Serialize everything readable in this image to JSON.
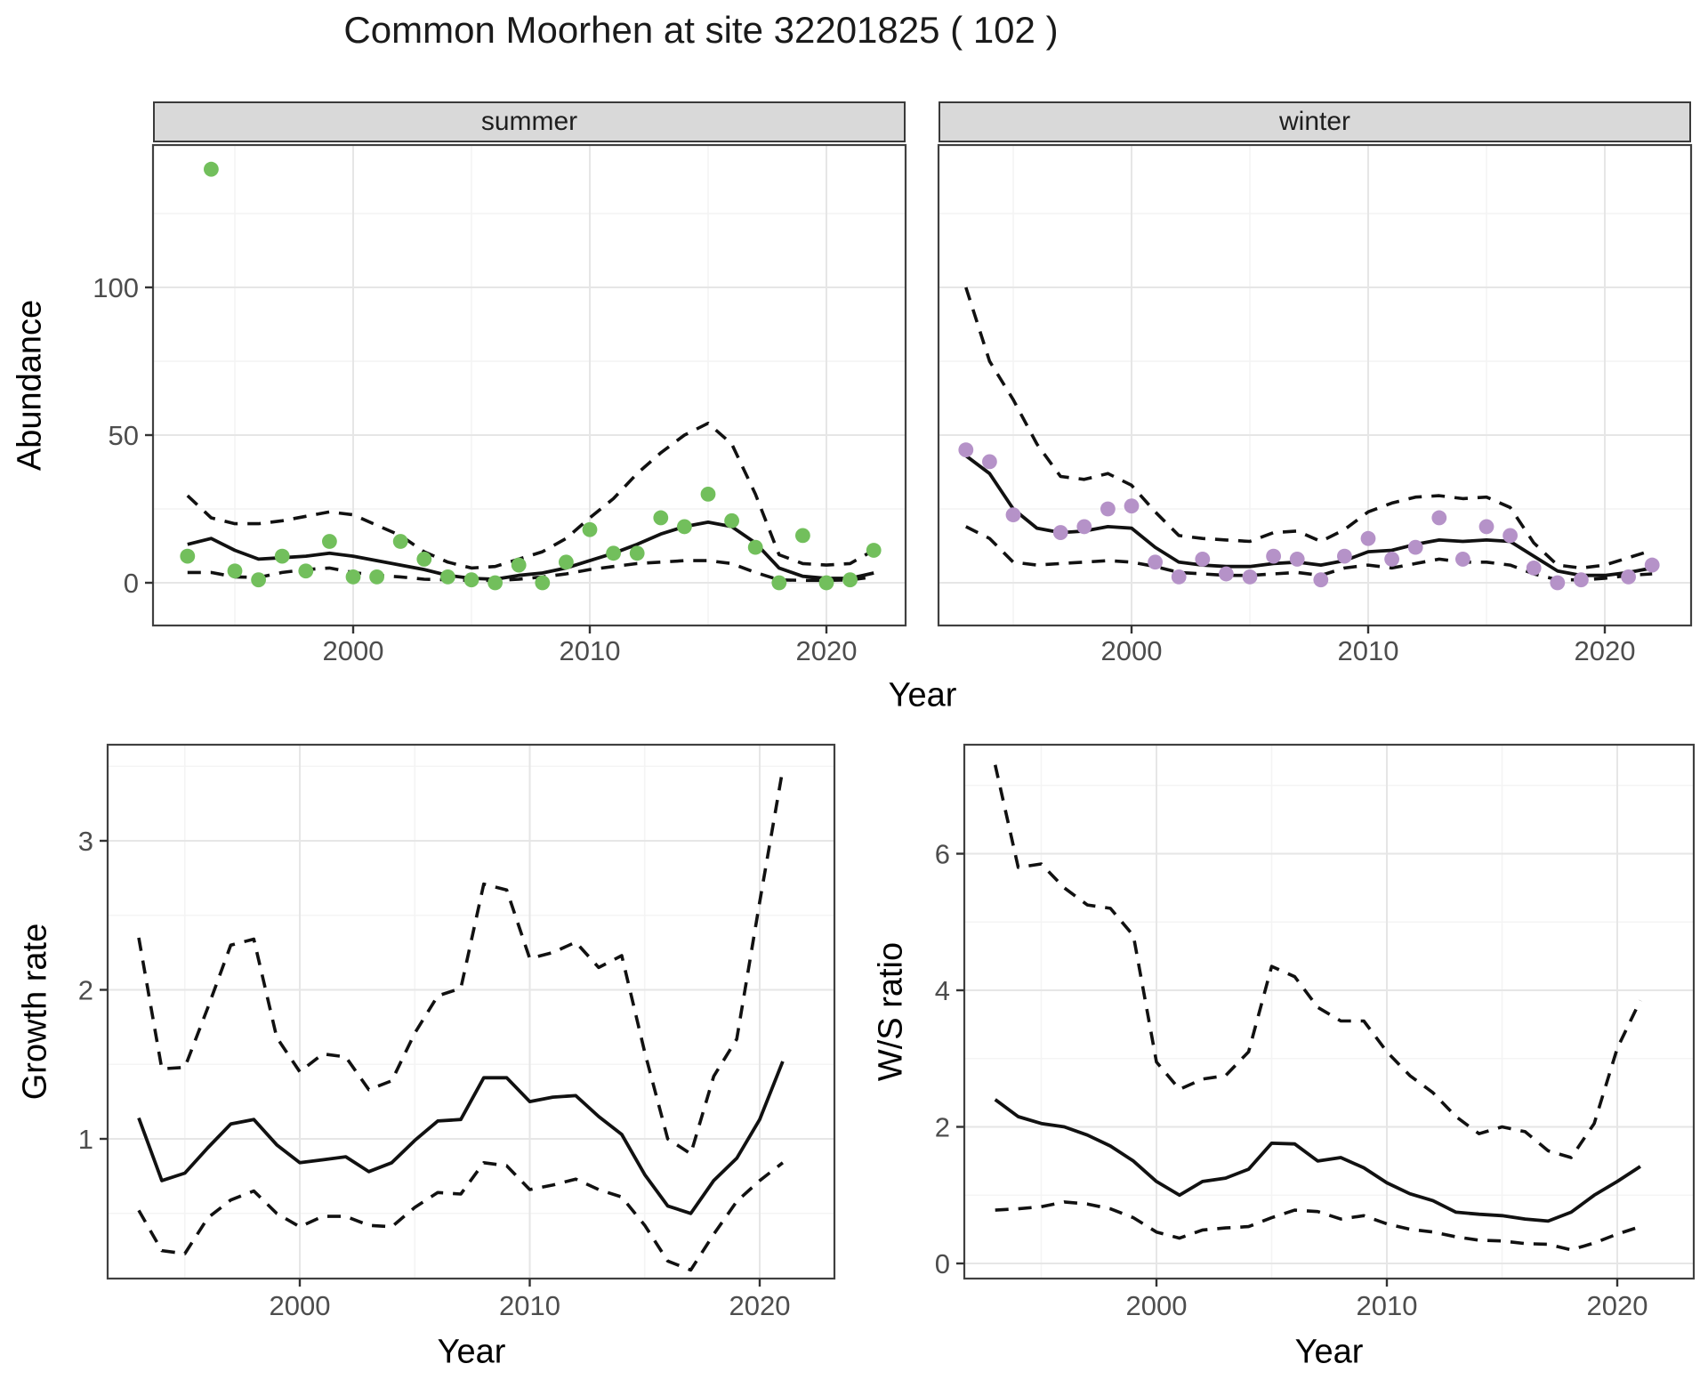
{
  "title": "Common Moorhen at site 32201825 ( 102 )",
  "top_row": {
    "ylabel": "Abundance",
    "xlabel": "Year"
  },
  "styles": {
    "summer_point_color": "#72BF5C",
    "winter_point_color": "#B592C8",
    "line_color": "#111111",
    "fit_style": "solid",
    "ci_style": "dashed",
    "tick_text_color": "#4d4d4d",
    "strip_fill": "#d9d9d9",
    "grid_major_color": "#e6e6e6",
    "grid_minor_color": "#f4f4f4"
  },
  "chart_data": [
    {
      "type": "scatter",
      "facet_label": "summer",
      "xlabel": "Year",
      "ylabel": "Abundance",
      "xticks": [
        2000,
        2010,
        2020
      ],
      "yticks": [
        0,
        50,
        100
      ],
      "xlim": [
        1991.6,
        2023.3
      ],
      "ylim": [
        -4,
        148
      ],
      "x": [
        1993,
        1994,
        1995,
        1996,
        1997,
        1998,
        1999,
        2000,
        2001,
        2002,
        2003,
        2004,
        2005,
        2006,
        2007,
        2008,
        2009,
        2010,
        2011,
        2012,
        2013,
        2014,
        2015,
        2016,
        2017,
        2018,
        2019,
        2020,
        2021,
        2022
      ],
      "points": [
        9,
        140,
        4,
        1,
        9,
        4,
        14,
        2,
        2,
        14,
        8,
        2,
        1,
        0,
        6,
        0,
        7,
        18,
        10,
        10,
        22,
        19,
        30,
        21,
        12,
        0,
        16,
        0,
        1,
        11
      ],
      "fit": [
        13,
        15,
        11,
        8,
        8.5,
        9,
        10,
        9,
        7.5,
        6,
        4.5,
        2.5,
        1.5,
        1.2,
        2.5,
        3.3,
        5,
        7.5,
        10,
        13,
        16.5,
        19,
        20.5,
        19,
        13.5,
        5,
        2.2,
        1.5,
        1.5,
        3.3
      ],
      "upper": [
        29.5,
        22,
        20,
        20,
        21,
        22.5,
        24,
        23,
        19.5,
        16,
        10.5,
        7,
        5,
        5.5,
        8,
        10.5,
        15,
        22,
        28.5,
        37,
        44,
        50,
        54,
        47,
        30,
        9.5,
        6.5,
        6,
        6.5,
        11
      ],
      "lower": [
        3.5,
        3.5,
        2,
        1.8,
        3.5,
        4.5,
        5,
        3.5,
        2.5,
        2,
        1.2,
        1,
        0.8,
        0.8,
        1.2,
        2,
        3,
        4.5,
        5.5,
        6.5,
        7,
        7.5,
        7.5,
        6.5,
        3.5,
        1,
        0.8,
        0.8,
        1,
        2
      ]
    },
    {
      "type": "scatter",
      "facet_label": "winter",
      "xlabel": "Year",
      "ylabel": "Abundance",
      "xticks": [
        2000,
        2010,
        2020
      ],
      "yticks": [
        0,
        50,
        100
      ],
      "xlim": [
        1991.6,
        2023.3
      ],
      "ylim": [
        -4,
        148
      ],
      "x": [
        1993,
        1994,
        1995,
        1996,
        1997,
        1998,
        1999,
        2000,
        2001,
        2002,
        2003,
        2004,
        2005,
        2006,
        2007,
        2008,
        2009,
        2010,
        2011,
        2012,
        2013,
        2014,
        2015,
        2016,
        2017,
        2018,
        2019,
        2020,
        2021,
        2022
      ],
      "points": [
        45,
        41,
        23,
        null,
        17,
        19,
        25,
        26,
        7,
        2,
        8,
        3,
        2,
        9,
        8,
        1,
        9,
        15,
        8,
        12,
        22,
        8,
        19,
        16,
        5,
        0,
        1,
        null,
        2,
        6
      ],
      "fit": [
        43,
        37,
        25,
        18.5,
        17,
        17.5,
        19,
        18.5,
        12,
        7,
        6,
        5.5,
        5.5,
        6.5,
        7,
        6,
        7.5,
        10.5,
        11,
        13,
        14.5,
        14,
        14.5,
        14,
        9,
        4,
        2.5,
        2.5,
        3.5,
        5
      ],
      "upper": [
        100,
        75,
        62,
        47,
        36,
        35,
        37,
        33,
        24,
        16,
        15,
        14.5,
        14,
        17,
        17.5,
        14,
        18,
        24,
        27,
        29,
        29.5,
        28.5,
        29,
        25.5,
        13.5,
        6,
        5,
        6,
        8.5,
        11
      ],
      "lower": [
        19,
        15,
        7,
        6,
        6.5,
        7,
        7.5,
        7,
        5.5,
        3.5,
        3,
        2.5,
        2.5,
        3,
        3.5,
        2.5,
        5,
        6,
        5,
        6.5,
        8,
        7,
        7,
        6,
        3,
        1,
        1,
        1.5,
        2.5,
        3
      ]
    },
    {
      "type": "line",
      "xlabel": "Year",
      "ylabel": "Growth rate",
      "xticks": [
        2000,
        2010,
        2020
      ],
      "yticks": [
        1,
        2,
        3
      ],
      "xlim": [
        1991.6,
        2023.2
      ],
      "ylim": [
        0.06,
        3.58
      ],
      "x": [
        1993,
        1994,
        1995,
        1996,
        1997,
        1998,
        1999,
        2000,
        2001,
        2002,
        2003,
        2004,
        2005,
        2006,
        2007,
        2008,
        2009,
        2010,
        2011,
        2012,
        2013,
        2014,
        2015,
        2016,
        2017,
        2018,
        2019,
        2020,
        2021
      ],
      "fit": [
        1.14,
        0.72,
        0.77,
        0.94,
        1.1,
        1.13,
        0.96,
        0.84,
        0.86,
        0.88,
        0.78,
        0.84,
        0.99,
        1.12,
        1.13,
        1.41,
        1.41,
        1.25,
        1.28,
        1.29,
        1.15,
        1.03,
        0.76,
        0.55,
        0.5,
        0.72,
        0.87,
        1.13,
        1.52
      ],
      "upper": [
        2.35,
        1.47,
        1.48,
        1.88,
        2.3,
        2.34,
        1.68,
        1.45,
        1.57,
        1.55,
        1.33,
        1.39,
        1.71,
        1.96,
        2.01,
        2.71,
        2.67,
        2.21,
        2.25,
        2.32,
        2.15,
        2.23,
        1.58,
        1.0,
        0.9,
        1.42,
        1.67,
        2.59,
        3.48
      ],
      "lower": [
        0.52,
        0.25,
        0.23,
        0.47,
        0.59,
        0.65,
        0.5,
        0.41,
        0.48,
        0.48,
        0.42,
        0.41,
        0.54,
        0.64,
        0.63,
        0.84,
        0.82,
        0.66,
        0.69,
        0.73,
        0.66,
        0.61,
        0.42,
        0.18,
        0.12,
        0.36,
        0.58,
        0.72,
        0.84
      ]
    },
    {
      "type": "line",
      "xlabel": "Year",
      "ylabel": "W/S ratio",
      "xticks": [
        2000,
        2010,
        2020
      ],
      "yticks": [
        0,
        2,
        4,
        6
      ],
      "xlim": [
        1991.6,
        2023.2
      ],
      "ylim": [
        -0.3,
        7.75
      ],
      "x": [
        1993,
        1994,
        1995,
        1996,
        1997,
        1998,
        1999,
        2000,
        2001,
        2002,
        2003,
        2004,
        2005,
        2006,
        2007,
        2008,
        2009,
        2010,
        2011,
        2012,
        2013,
        2014,
        2015,
        2016,
        2017,
        2018,
        2019,
        2020,
        2021
      ],
      "fit": [
        2.4,
        2.15,
        2.05,
        2.0,
        1.88,
        1.72,
        1.5,
        1.2,
        1.0,
        1.2,
        1.25,
        1.38,
        1.76,
        1.75,
        1.5,
        1.55,
        1.4,
        1.18,
        1.02,
        0.92,
        0.75,
        0.72,
        0.7,
        0.65,
        0.62,
        0.75,
        1.0,
        1.2,
        1.42
      ],
      "upper": [
        7.3,
        5.8,
        5.85,
        5.5,
        5.25,
        5.2,
        4.8,
        2.95,
        2.55,
        2.7,
        2.75,
        3.1,
        4.35,
        4.2,
        3.75,
        3.55,
        3.55,
        3.1,
        2.75,
        2.5,
        2.15,
        1.9,
        2.0,
        1.93,
        1.65,
        1.55,
        2.05,
        3.15,
        3.85
      ],
      "lower": [
        0.78,
        0.8,
        0.83,
        0.9,
        0.87,
        0.8,
        0.67,
        0.46,
        0.37,
        0.49,
        0.52,
        0.54,
        0.67,
        0.78,
        0.76,
        0.65,
        0.7,
        0.58,
        0.5,
        0.46,
        0.39,
        0.34,
        0.33,
        0.29,
        0.28,
        0.2,
        0.3,
        0.43,
        0.54
      ]
    }
  ]
}
